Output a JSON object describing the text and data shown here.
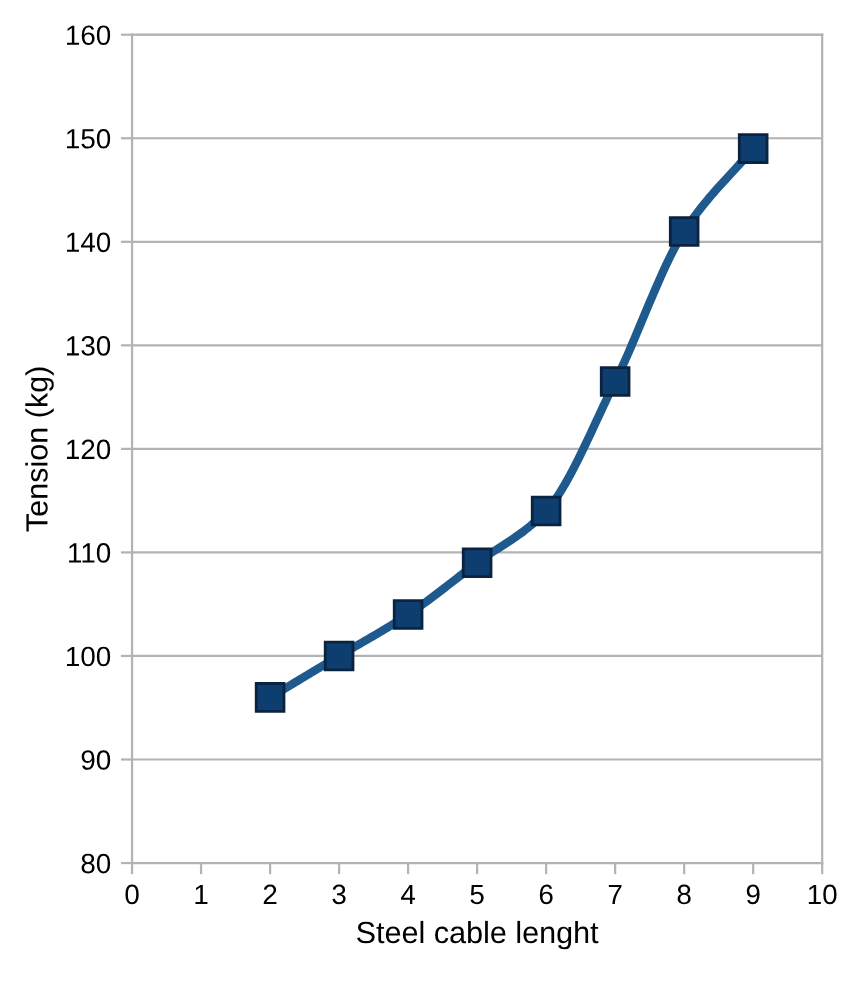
{
  "chart_data": {
    "type": "line",
    "xlabel": "Steel cable lenght",
    "ylabel": "Tension (kg)",
    "x": [
      2,
      3,
      4,
      5,
      6,
      7,
      8,
      9
    ],
    "series": [
      {
        "color": "#1f5a8f",
        "values": [
          96,
          100,
          104,
          109,
          114,
          126.5,
          141,
          149
        ]
      }
    ],
    "xlim": [
      0,
      10
    ],
    "xticks": [
      0,
      1,
      2,
      3,
      4,
      5,
      6,
      7,
      8,
      9,
      10
    ],
    "ylim": [
      80,
      160
    ],
    "yticks": [
      80,
      90,
      100,
      110,
      120,
      130,
      140,
      150,
      160
    ],
    "grid": "y",
    "marker": "square",
    "line_style": "solid",
    "legend": false
  }
}
